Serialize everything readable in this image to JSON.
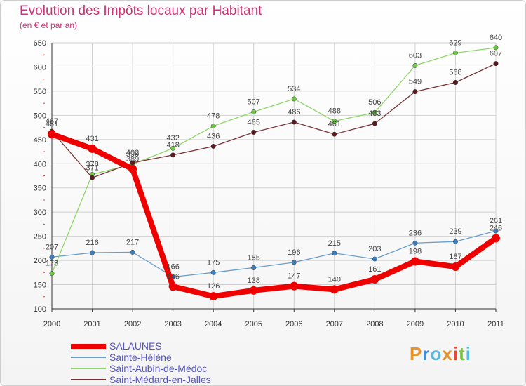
{
  "header": {
    "title": "Evolution des Impôts locaux par Habitant",
    "subtitle": "(en € et par an)"
  },
  "brand": {
    "letters": [
      "P",
      "r",
      "o",
      "x",
      "i",
      "t",
      "i"
    ],
    "colors": [
      "#e8922a",
      "#3a8fd8",
      "#5bb8e0",
      "#e8922a",
      "#e84a3a",
      "#7abf3a",
      "#5bb8e0"
    ]
  },
  "chart_data": {
    "type": "line",
    "title": "Evolution des Impôts locaux par Habitant",
    "subtitle": "(en € et par an)",
    "xlabel": "",
    "ylabel": "",
    "ylim": [
      100,
      650
    ],
    "yticks": [
      100,
      150,
      200,
      250,
      300,
      350,
      400,
      450,
      500,
      550,
      600,
      650
    ],
    "grid": true,
    "legend_position": "bottom-left",
    "categories": [
      "2000",
      "2001",
      "2002",
      "2003",
      "2004",
      "2005",
      "2006",
      "2007",
      "2008",
      "2009",
      "2010",
      "2011"
    ],
    "series": [
      {
        "name": "Sainte-Hélène",
        "color": "#6a9fcc",
        "marker": "#3a7fc4",
        "values": [
          207,
          216,
          217,
          166,
          175,
          185,
          196,
          215,
          203,
          236,
          239,
          261
        ]
      },
      {
        "name": "Saint-Aubin-de-Médoc",
        "color": "#8fd66a",
        "marker": "#6cc940",
        "values": [
          173,
          378,
          399,
          432,
          478,
          507,
          534,
          488,
          506,
          603,
          629,
          640
        ]
      },
      {
        "name": "Saint-Médard-en-Jalles",
        "color": "#7a3438",
        "marker": "#5a1a1e",
        "values": [
          467,
          371,
          402,
          418,
          436,
          465,
          486,
          461,
          483,
          549,
          568,
          607
        ]
      },
      {
        "name": "SALAUNES",
        "color": "#ee0000",
        "marker": "#ee0000",
        "values": [
          461,
          431,
          389,
          146,
          126,
          138,
          147,
          140,
          161,
          198,
          187,
          246
        ]
      }
    ],
    "legend": [
      {
        "name": "SALAUNES",
        "color": "#ee0000"
      },
      {
        "name": "Sainte-Hélène",
        "color": "#6a9fcc"
      },
      {
        "name": "Saint-Aubin-de-Médoc",
        "color": "#8fd66a"
      },
      {
        "name": "Saint-Médard-en-Jalles",
        "color": "#7a3438"
      }
    ]
  }
}
